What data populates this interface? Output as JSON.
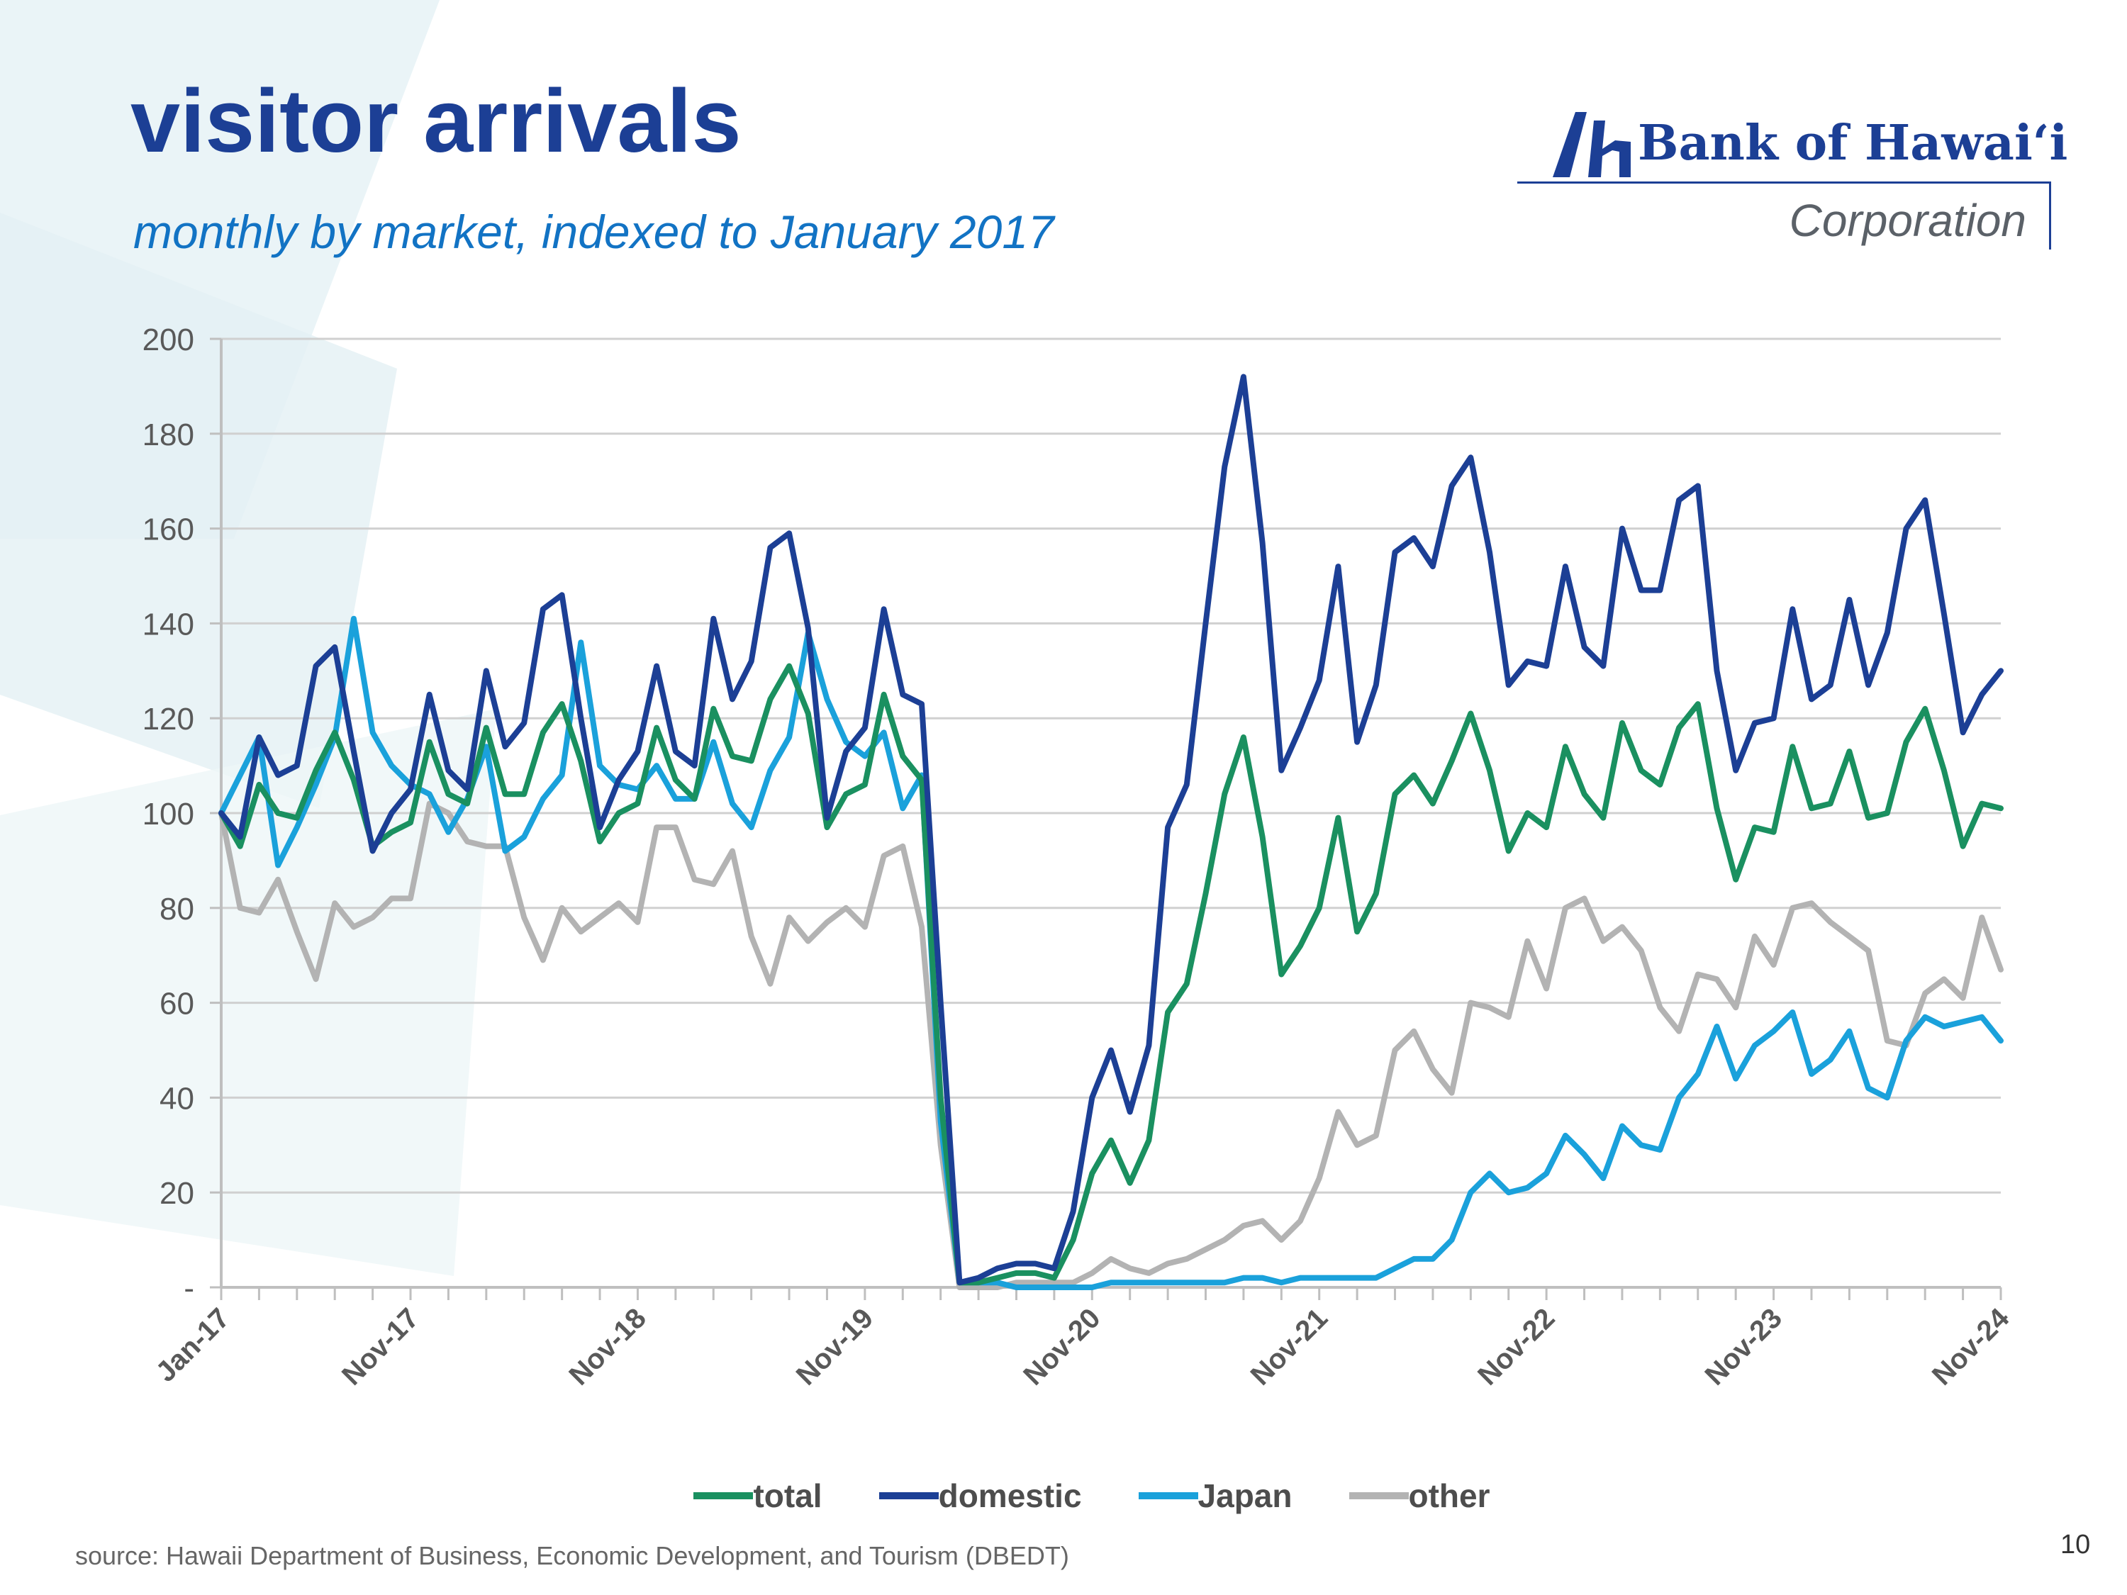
{
  "slide": {
    "title": "visitor arrivals",
    "subtitle": "monthly by market, indexed to January 2017",
    "source": "source: Hawaii Department of Business, Economic Development, and Tourism (DBEDT)",
    "page_number": "10"
  },
  "logo": {
    "name": "Bank of Hawaiʻi",
    "subtitle": "Corporation",
    "brand_color": "#1c3f95"
  },
  "chart_data": {
    "type": "line",
    "title": "",
    "xlabel": "",
    "ylabel": "",
    "ylim": [
      0,
      200
    ],
    "yticks": [
      0,
      20,
      40,
      60,
      80,
      100,
      120,
      140,
      160,
      180,
      200
    ],
    "ytick_labels": [
      "-",
      "20",
      "40",
      "60",
      "80",
      "100",
      "120",
      "140",
      "160",
      "180",
      "200"
    ],
    "x_start": "Jan-17",
    "x_tick_labels": [
      "Jan-17",
      "Nov-17",
      "Nov-18",
      "Nov-19",
      "Nov-20",
      "Nov-21",
      "Nov-22",
      "Nov-23",
      "Nov-24"
    ],
    "x_tick_months": [
      0,
      10,
      22,
      34,
      46,
      58,
      70,
      82,
      94
    ],
    "grid": true,
    "legend_position": "bottom",
    "series": [
      {
        "name": "total",
        "color": "#1a9060",
        "values": [
          100,
          93,
          106,
          100,
          99,
          109,
          117,
          107,
          93,
          96,
          98,
          115,
          104,
          102,
          118,
          104,
          104,
          117,
          123,
          111,
          94,
          100,
          102,
          118,
          107,
          103,
          122,
          112,
          111,
          124,
          131,
          121,
          97,
          104,
          106,
          125,
          112,
          107,
          40,
          1,
          1,
          2,
          3,
          3,
          2,
          10,
          24,
          31,
          22,
          31,
          58,
          64,
          83,
          104,
          116,
          95,
          66,
          72,
          80,
          99,
          75,
          83,
          104,
          108,
          102,
          111,
          121,
          109,
          92,
          100,
          97,
          114,
          104,
          99,
          119,
          109,
          106,
          118,
          123,
          101,
          86,
          97,
          96,
          114,
          101,
          102,
          113,
          99,
          100,
          115,
          122,
          109,
          93,
          102,
          101
        ]
      },
      {
        "name": "domestic",
        "color": "#1c3f95",
        "values": [
          100,
          95,
          116,
          108,
          110,
          131,
          135,
          113,
          92,
          100,
          105,
          125,
          109,
          105,
          130,
          114,
          119,
          143,
          146,
          120,
          97,
          107,
          113,
          131,
          113,
          110,
          141,
          124,
          132,
          156,
          159,
          139,
          99,
          113,
          118,
          143,
          125,
          123,
          60,
          1,
          2,
          4,
          5,
          5,
          4,
          16,
          40,
          50,
          37,
          51,
          97,
          106,
          140,
          173,
          192,
          157,
          109,
          118,
          128,
          152,
          115,
          127,
          155,
          158,
          152,
          169,
          175,
          155,
          127,
          132,
          131,
          152,
          135,
          131,
          160,
          147,
          147,
          166,
          169,
          130,
          109,
          119,
          120,
          143,
          124,
          127,
          145,
          127,
          138,
          160,
          166,
          142,
          117,
          125,
          130
        ]
      },
      {
        "name": "Japan",
        "color": "#1aa1db",
        "values": [
          100,
          108,
          116,
          89,
          97,
          106,
          116,
          141,
          117,
          110,
          106,
          104,
          96,
          103,
          114,
          92,
          95,
          103,
          108,
          136,
          110,
          106,
          105,
          110,
          103,
          103,
          115,
          102,
          97,
          109,
          116,
          138,
          124,
          115,
          112,
          117,
          101,
          108,
          35,
          1,
          1,
          1,
          0,
          0,
          0,
          0,
          0,
          1,
          1,
          1,
          1,
          1,
          1,
          1,
          2,
          2,
          1,
          2,
          2,
          2,
          2,
          2,
          4,
          6,
          6,
          10,
          20,
          24,
          20,
          21,
          24,
          32,
          28,
          23,
          34,
          30,
          29,
          40,
          45,
          55,
          44,
          51,
          54,
          58,
          45,
          48,
          54,
          42,
          40,
          52,
          57,
          55,
          56,
          57,
          52
        ]
      },
      {
        "name": "other",
        "color": "#b3b3b3",
        "values": [
          100,
          80,
          79,
          86,
          75,
          65,
          81,
          76,
          78,
          82,
          82,
          102,
          100,
          94,
          93,
          93,
          78,
          69,
          80,
          75,
          78,
          81,
          77,
          97,
          97,
          86,
          85,
          92,
          74,
          64,
          78,
          73,
          77,
          80,
          76,
          91,
          93,
          76,
          30,
          0,
          0,
          0,
          1,
          1,
          1,
          1,
          3,
          6,
          4,
          3,
          5,
          6,
          8,
          10,
          13,
          14,
          10,
          14,
          23,
          37,
          30,
          32,
          50,
          54,
          46,
          41,
          60,
          59,
          57,
          73,
          63,
          80,
          82,
          73,
          76,
          71,
          59,
          54,
          66,
          65,
          59,
          74,
          68,
          80,
          81,
          77,
          74,
          71,
          52,
          51,
          62,
          65,
          61,
          78,
          67
        ]
      }
    ]
  }
}
